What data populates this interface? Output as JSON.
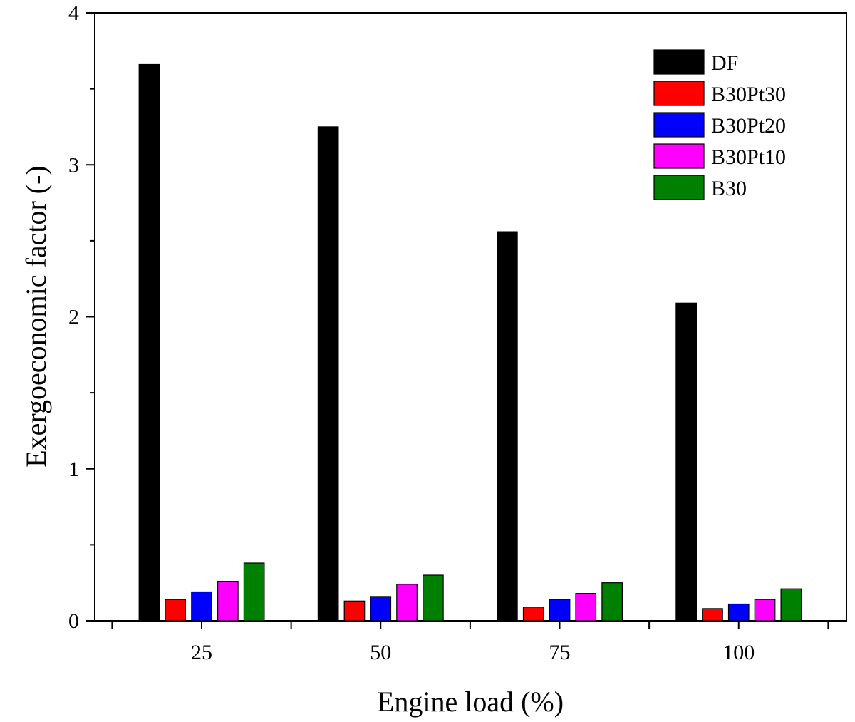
{
  "chart_data": {
    "type": "bar",
    "xlabel": "Engine load (%)",
    "ylabel": "Exergoeconomic factor (-)",
    "categories": [
      "25",
      "50",
      "75",
      "100"
    ],
    "ylim": [
      0,
      4
    ],
    "yticks": [
      0,
      1,
      2,
      3,
      4
    ],
    "grid": false,
    "legend_position": "top-right",
    "series": [
      {
        "name": "DF",
        "color": "#000000",
        "values": [
          3.66,
          3.25,
          2.56,
          2.09
        ]
      },
      {
        "name": "B30Pt30",
        "color": "#ff0000",
        "values": [
          0.14,
          0.13,
          0.09,
          0.08
        ]
      },
      {
        "name": "B30Pt20",
        "color": "#0000ff",
        "values": [
          0.19,
          0.16,
          0.14,
          0.11
        ]
      },
      {
        "name": "B30Pt10",
        "color": "#ff00ff",
        "values": [
          0.26,
          0.24,
          0.18,
          0.14
        ]
      },
      {
        "name": "B30",
        "color": "#008000",
        "values": [
          0.38,
          0.3,
          0.25,
          0.21
        ]
      }
    ]
  }
}
